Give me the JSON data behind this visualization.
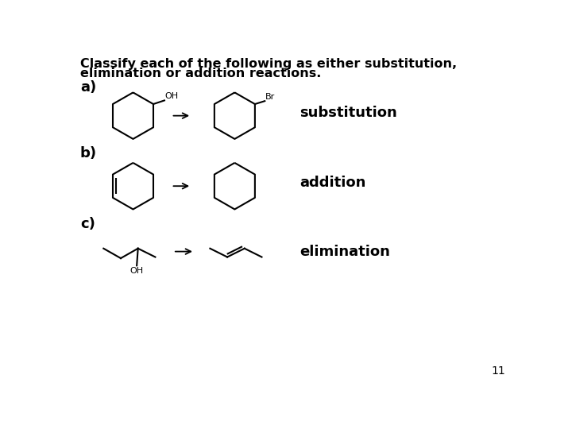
{
  "title_line1": "Classify each of the following as either substitution,",
  "title_line2": "elimination or addition reactions.",
  "label_a": "a)",
  "label_b": "b)",
  "label_c": "c)",
  "answer_a": "substitution",
  "answer_b": "addition",
  "answer_c": "elimination",
  "page_number": "11",
  "bg_color": "#ffffff",
  "line_color": "#000000",
  "title_fontsize": 11.5,
  "label_fontsize": 13,
  "answer_fontsize": 13,
  "chem_fontsize": 8,
  "page_fontsize": 10
}
